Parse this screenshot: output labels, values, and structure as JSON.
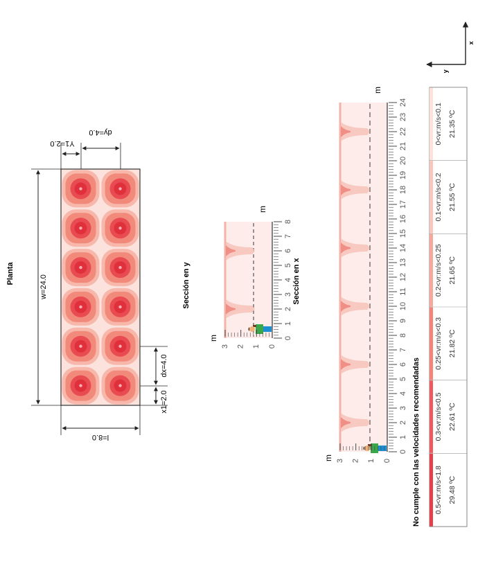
{
  "plan": {
    "title": "Planta",
    "w_label": "w=24.0",
    "l_label": "l=8.0",
    "x1_label": "x1=2.0",
    "dx_label": "dx=4.0",
    "y1_label": "Y1=2.0",
    "dy_label": "dy=4.0",
    "diffuser_rows": 6,
    "diffuser_cols": 2
  },
  "section_y": {
    "title": "Sección en y",
    "unit_h": "m",
    "unit_v": "m",
    "h_ticks": [
      "0",
      "1",
      "2",
      "3",
      "4",
      "5",
      "6",
      "7",
      "8"
    ],
    "v_ticks": [
      "0",
      "1",
      "2",
      "3"
    ],
    "jets": 2
  },
  "section_x": {
    "title": "Sección en x",
    "unit_h": "m",
    "unit_v": "m",
    "h_ticks": [
      "0",
      "1",
      "2",
      "3",
      "4",
      "5",
      "6",
      "7",
      "8",
      "9",
      "10",
      "11",
      "12",
      "13",
      "14",
      "15",
      "16",
      "17",
      "18",
      "19",
      "20",
      "21",
      "22",
      "23",
      "24"
    ],
    "v_ticks": [
      "0",
      "1",
      "2",
      "3"
    ],
    "jets": 6
  },
  "warning": "No cumple con las velocidades recomendadas",
  "legend": [
    {
      "range": "0.5<vr:m/s<1.8",
      "temp": "29.48 ºC",
      "color": "#e8404a"
    },
    {
      "range": "0.3<vr:m/s<0.5",
      "temp": "22.61 ºC",
      "color": "#ee5a5e"
    },
    {
      "range": "0.25<vr:m/s<0.3",
      "temp": "21.82 ºC",
      "color": "#f28478"
    },
    {
      "range": "0.2<vr:m/s<0.25",
      "temp": "21.65 ºC",
      "color": "#f6a99b"
    },
    {
      "range": "0.1<vr:m/s<0.2",
      "temp": "21.55 ºC",
      "color": "#f9c6bd"
    },
    {
      "range": "0<vr:m/s<0.1",
      "temp": "21.35 ºC",
      "color": "#fde1da"
    }
  ],
  "axes": {
    "x_label": "x",
    "y_label": "y"
  },
  "colors": {
    "room": "#fbe7e2",
    "contour_outer": "#f7b8ab",
    "contour_mid": "#f28a7c",
    "contour_inner": "#e94b52",
    "contour_core": "#e0303c"
  }
}
